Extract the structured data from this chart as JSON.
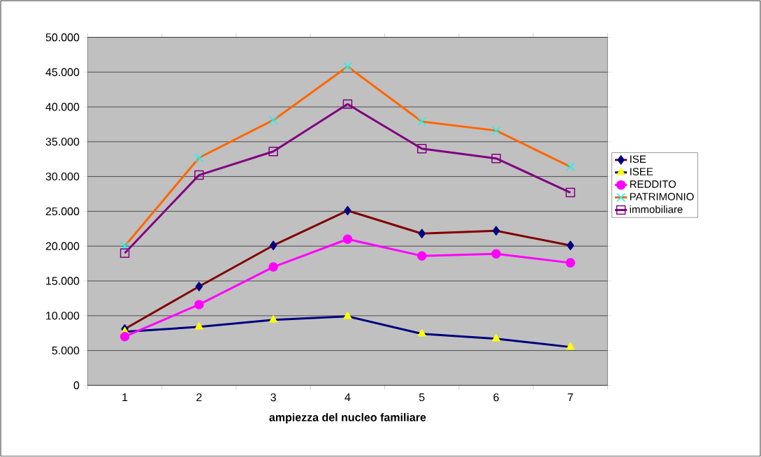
{
  "chart_data": {
    "type": "line",
    "xlabel": "ampiezza del nucleo familiare",
    "categories": [
      "1",
      "2",
      "3",
      "4",
      "5",
      "6",
      "7"
    ],
    "series": [
      {
        "name": "ISE",
        "color": "#800000",
        "marker": "diamond",
        "values": [
          8100,
          14200,
          20100,
          25100,
          21800,
          22200,
          20100
        ]
      },
      {
        "name": "ISEE",
        "color": "#000080",
        "marker": "triangle",
        "values": [
          7700,
          8400,
          9400,
          9900,
          7400,
          6700,
          5500
        ]
      },
      {
        "name": "REDDITO",
        "color": "#ff00ff",
        "marker": "circle",
        "values": [
          7000,
          11600,
          17000,
          21000,
          18600,
          18900,
          17600
        ]
      },
      {
        "name": "PATRIMONIO",
        "color": "#ff6600",
        "marker": "cross",
        "values": [
          20000,
          32700,
          38100,
          45800,
          37900,
          36600,
          31400
        ]
      },
      {
        "name": "immobiliare",
        "color": "#800080",
        "marker": "square",
        "values": [
          19000,
          30200,
          33600,
          40400,
          34000,
          32600,
          27700
        ]
      }
    ],
    "ylim": [
      0,
      50000
    ],
    "yticks": [
      0,
      {
        "value": 5000,
        "label": "5.000"
      },
      {
        "value": 10000,
        "label": "10.000"
      },
      {
        "value": 15000,
        "label": "15.000"
      },
      {
        "value": 20000,
        "label": "20.000"
      },
      {
        "value": 25000,
        "label": "25.000"
      },
      {
        "value": 30000,
        "label": "30.000"
      },
      {
        "value": 35000,
        "label": "35.000"
      },
      {
        "value": 40000,
        "label": "40.000"
      },
      {
        "value": 45000,
        "label": "45.000"
      },
      {
        "value": 50000,
        "label": "50.000"
      }
    ],
    "grid": "y",
    "legend": "right",
    "line_style": "solid"
  }
}
